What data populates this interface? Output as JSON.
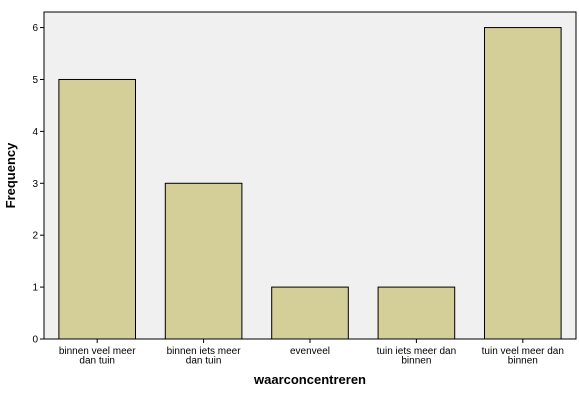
{
  "chart_data": {
    "type": "bar",
    "categories": [
      [
        "binnen veel meer",
        "dan tuin"
      ],
      [
        "binnen iets meer",
        "dan tuin"
      ],
      [
        "evenveel"
      ],
      [
        "tuin iets meer dan",
        "binnen"
      ],
      [
        "tuin veel meer dan",
        "binnen"
      ]
    ],
    "values": [
      5,
      3,
      1,
      1,
      6
    ],
    "xlabel": "waarconcentreren",
    "ylabel": "Frequency",
    "ylim": [
      0,
      6.3
    ],
    "yticks": [
      0,
      1,
      2,
      3,
      4,
      5,
      6
    ],
    "grid": false,
    "legend": "none"
  },
  "colors": {
    "plot_background": "#f0f0f0",
    "bar_fill": "#d4cf99",
    "bar_stroke": "#000000",
    "axis": "#000000"
  }
}
